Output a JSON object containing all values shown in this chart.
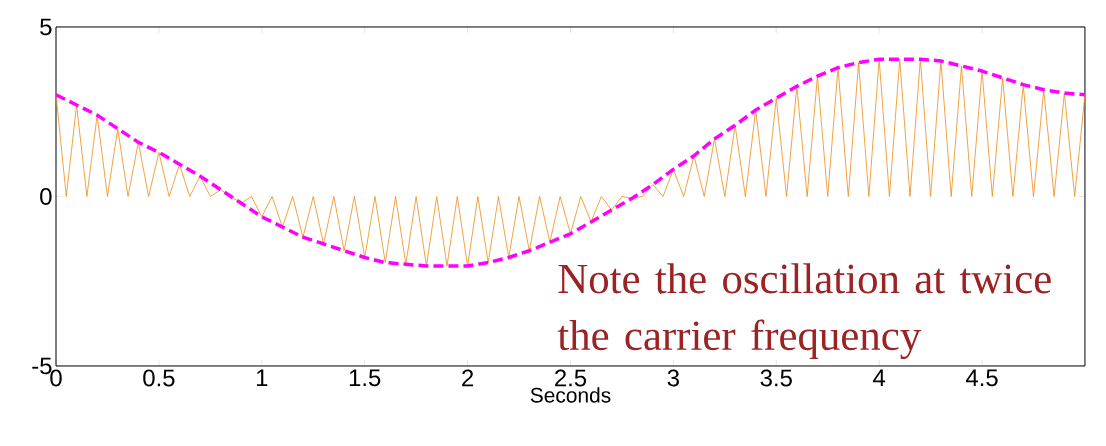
{
  "chart_data": {
    "type": "line",
    "xlabel": "Seconds",
    "xlim": [
      0,
      5
    ],
    "ylim": [
      -5,
      5
    ],
    "xticks": [
      0,
      0.5,
      1,
      1.5,
      2,
      2.5,
      3,
      3.5,
      4,
      4.5
    ],
    "yticks": [
      -5,
      0,
      5
    ],
    "series": [
      {
        "color": "#ee8c14",
        "line_style": "solid",
        "x": [
          0,
          0.05,
          0.1,
          0.15,
          0.2,
          0.25,
          0.3,
          0.35,
          0.4,
          0.45,
          0.5,
          0.55,
          0.6,
          0.65,
          0.7,
          0.75,
          0.8,
          0.85,
          0.9,
          0.95,
          1,
          1.05,
          1.1,
          1.15,
          1.2,
          1.25,
          1.3,
          1.35,
          1.4,
          1.45,
          1.5,
          1.55,
          1.6,
          1.65,
          1.7,
          1.75,
          1.8,
          1.85,
          1.9,
          1.95,
          2,
          2.05,
          2.1,
          2.15,
          2.2,
          2.25,
          2.3,
          2.35,
          2.4,
          2.45,
          2.5,
          2.55,
          2.6,
          2.65,
          2.7,
          2.75,
          2.8,
          2.85,
          2.9,
          2.95,
          3,
          3.05,
          3.1,
          3.15,
          3.2,
          3.25,
          3.3,
          3.35,
          3.4,
          3.45,
          3.5,
          3.55,
          3.6,
          3.65,
          3.7,
          3.75,
          3.8,
          3.85,
          3.9,
          3.95,
          4,
          4.05,
          4.1,
          4.15,
          4.2,
          4.25,
          4.3,
          4.35,
          4.4,
          4.45,
          4.5,
          4.55,
          4.6,
          4.65,
          4.7,
          4.75,
          4.8,
          4.85,
          4.9,
          4.95,
          5
        ],
        "values": [
          3.0,
          0,
          2.7,
          0,
          2.4,
          0,
          2.0,
          0,
          1.6,
          0,
          1.3,
          0,
          0.95,
          0,
          0.6,
          0,
          0.2,
          0,
          -0.2,
          0,
          -0.6,
          0,
          -0.9,
          0,
          -1.2,
          0,
          -1.4,
          0,
          -1.6,
          0,
          -1.8,
          0,
          -1.95,
          0,
          -2.0,
          0,
          -2.05,
          0,
          -2.05,
          0,
          -2.05,
          0,
          -1.95,
          0,
          -1.8,
          0,
          -1.6,
          0,
          -1.35,
          0,
          -1.1,
          0,
          -0.75,
          0,
          -0.4,
          0,
          -0.05,
          0,
          0.35,
          0,
          0.8,
          0,
          1.2,
          0,
          1.7,
          0,
          2.1,
          0,
          2.55,
          0,
          2.9,
          0,
          3.25,
          0,
          3.55,
          0,
          3.8,
          0,
          3.95,
          0,
          4.05,
          0,
          4.05,
          0,
          4.05,
          0,
          4.0,
          0,
          3.85,
          0,
          3.7,
          0,
          3.5,
          0,
          3.3,
          0,
          3.15,
          0,
          3.05,
          0,
          3.0
        ]
      },
      {
        "color": "#ff00ff",
        "line_style": "dashed",
        "x": [
          0,
          0.1,
          0.2,
          0.3,
          0.4,
          0.5,
          0.6,
          0.7,
          0.8,
          0.9,
          1,
          1.1,
          1.2,
          1.3,
          1.4,
          1.5,
          1.6,
          1.7,
          1.8,
          1.9,
          2,
          2.1,
          2.2,
          2.3,
          2.4,
          2.5,
          2.6,
          2.7,
          2.8,
          2.9,
          3,
          3.1,
          3.2,
          3.3,
          3.4,
          3.5,
          3.6,
          3.7,
          3.8,
          3.9,
          4,
          4.1,
          4.2,
          4.3,
          4.4,
          4.5,
          4.6,
          4.7,
          4.8,
          4.9,
          5
        ],
        "values": [
          3.0,
          2.7,
          2.4,
          2.0,
          1.6,
          1.3,
          0.95,
          0.6,
          0.2,
          -0.2,
          -0.6,
          -0.9,
          -1.2,
          -1.4,
          -1.6,
          -1.8,
          -1.95,
          -2.0,
          -2.05,
          -2.05,
          -2.05,
          -1.95,
          -1.8,
          -1.6,
          -1.35,
          -1.1,
          -0.75,
          -0.4,
          -0.05,
          0.35,
          0.8,
          1.2,
          1.7,
          2.1,
          2.55,
          2.9,
          3.25,
          3.55,
          3.8,
          3.95,
          4.05,
          4.05,
          4.05,
          4.0,
          3.85,
          3.7,
          3.5,
          3.3,
          3.15,
          3.05,
          3.0
        ]
      }
    ],
    "annotations": [
      "Note the oscillation at twice the carrier frequency"
    ]
  }
}
